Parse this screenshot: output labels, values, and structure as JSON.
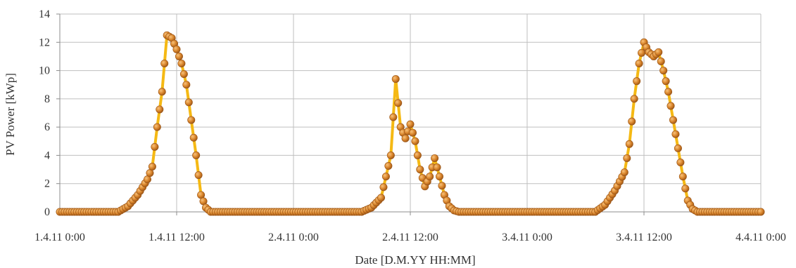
{
  "chart_data": {
    "type": "line",
    "title": "",
    "xlabel": "Date [D.M.YY HH:MM]",
    "ylabel": "PV Power [kWp]",
    "xlim": [
      "1.4.11 0:00",
      "4.4.11 0:00"
    ],
    "ylim": [
      0,
      14
    ],
    "yticks": [
      "0",
      "2",
      "4",
      "6",
      "8",
      "10",
      "12",
      "14"
    ],
    "xticks": [
      "1.4.11 0:00",
      "1.4.11 12:00",
      "2.4.11 0:00",
      "2.4.11 12:00",
      "3.4.11 0:00",
      "3.4.11 12:00",
      "4.4.11 0:00"
    ],
    "grid": true,
    "legend": "none",
    "colors": {
      "line": "#f5b914",
      "marker_fill": "#d9852c",
      "marker_stroke": "#9a5416",
      "grid": "#bfbfbf"
    },
    "series": [
      {
        "x": [
          "1.4.11 0:00",
          "1.4.11 6:00",
          "1.4.11 7:00",
          "1.4.11 8:00",
          "1.4.11 9:00",
          "1.4.11 9:30",
          "1.4.11 10:00",
          "1.4.11 10:30",
          "1.4.11 11:00",
          "1.4.11 11:30",
          "1.4.11 12:00",
          "1.4.11 12:30",
          "1.4.11 13:00",
          "1.4.11 13:30",
          "1.4.11 14:00",
          "1.4.11 14:30",
          "1.4.11 15:00",
          "1.4.11 15:30",
          "1.4.11 16:00",
          "1.4.11 16:30",
          "1.4.11 17:00",
          "1.4.11 18:00",
          "1.4.11 19:00",
          "2.4.11 7:00",
          "2.4.11 8:00",
          "2.4.11 9:00",
          "2.4.11 10:00",
          "2.4.11 10:30",
          "2.4.11 11:00",
          "2.4.11 11:30",
          "2.4.11 12:00",
          "2.4.11 12:30",
          "2.4.11 13:00",
          "2.4.11 13:30",
          "2.4.11 14:00",
          "2.4.11 14:30",
          "2.4.11 15:00",
          "2.4.11 15:30",
          "2.4.11 16:00",
          "2.4.11 16:30",
          "2.4.11 17:00",
          "2.4.11 17:30",
          "2.4.11 18:00",
          "2.4.11 19:00",
          "3.4.11 7:00",
          "3.4.11 8:00",
          "3.4.11 9:00",
          "3.4.11 10:00",
          "3.4.11 10:30",
          "3.4.11 11:00",
          "3.4.11 11:30",
          "3.4.11 12:00",
          "3.4.11 12:30",
          "3.4.11 13:00",
          "3.4.11 13:30",
          "3.4.11 14:00",
          "3.4.11 14:30",
          "3.4.11 15:00",
          "3.4.11 15:30",
          "3.4.11 16:00",
          "3.4.11 16:30",
          "3.4.11 17:00",
          "3.4.11 17:30",
          "3.4.11 18:00",
          "3.4.11 19:00",
          "4.4.11 0:00"
        ],
        "values": [
          0,
          0,
          0.4,
          1.2,
          2.3,
          3.2,
          6.0,
          8.5,
          12.5,
          12.3,
          11.5,
          10.5,
          9.0,
          6.5,
          4.0,
          1.2,
          0.3,
          0,
          0,
          0,
          0,
          0,
          0,
          0,
          0.3,
          1.0,
          4.0,
          9.4,
          6.0,
          5.2,
          6.2,
          5.0,
          3.0,
          1.8,
          2.5,
          3.8,
          2.5,
          1.2,
          0.4,
          0.1,
          0,
          0,
          0,
          0,
          0,
          0.5,
          1.5,
          2.8,
          4.8,
          8.0,
          10.5,
          12.0,
          11.3,
          11.0,
          11.3,
          10.0,
          8.5,
          6.5,
          4.5,
          2.5,
          0.8,
          0.2,
          0,
          0,
          0,
          0
        ]
      }
    ]
  }
}
